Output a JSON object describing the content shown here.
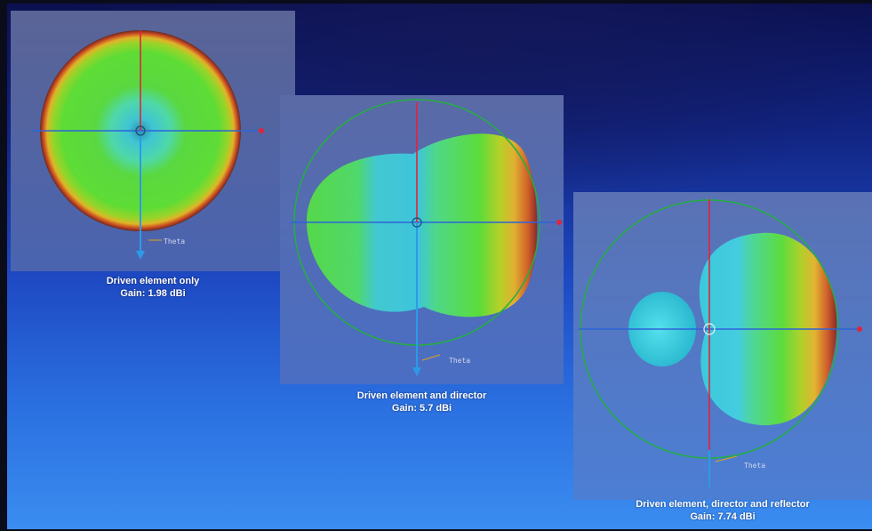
{
  "slide": {
    "panels": [
      {
        "caption_title": "Driven element only",
        "caption_gain": "Gain: 1.98 dBi",
        "axis_label": "Theta",
        "pattern": "omnidirectional",
        "gain_dbi": 1.98
      },
      {
        "caption_title": "Driven element and director",
        "caption_gain": "Gain: 5.7 dBi",
        "axis_label": "Theta",
        "pattern": "directional-two-element",
        "gain_dbi": 5.7
      },
      {
        "caption_title": "Driven element, director and reflector",
        "caption_gain": "Gain: 7.74 dBi",
        "axis_label": "Theta",
        "pattern": "directional-three-element",
        "gain_dbi": 7.74
      }
    ]
  },
  "colors": {
    "panel_bg": "#5a6aa0",
    "green_fill": "#52d43a",
    "cyan_core": "#3cc8d8",
    "rim_red": "#c4402a",
    "axis_blue": "#2d64d8",
    "axis_red": "#e0243a",
    "ring_green": "#22b040"
  }
}
